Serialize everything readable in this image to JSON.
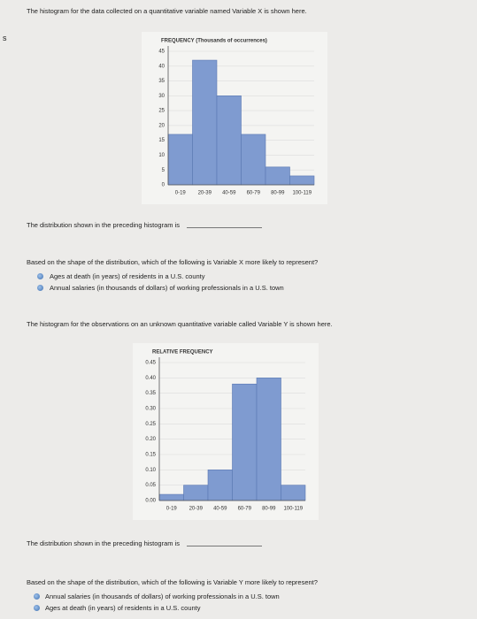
{
  "side_marker": "s",
  "sections": [
    {
      "intro": "The histogram for the data collected on a quantitative variable named Variable X is shown here.",
      "statement": "The distribution shown in the preceding histogram is",
      "question": "Based on the shape of the distribution, which of the following is Variable X more likely to represent?",
      "options": [
        "Ages at death (in years) of residents in a U.S. county",
        "Annual salaries (in thousands of dollars) of working professionals in a U.S. town"
      ]
    },
    {
      "intro": "The histogram for the observations on an unknown quantitative variable called Variable Y is shown here.",
      "statement": "The distribution shown in the preceding histogram is",
      "question": "Based on the shape of the distribution, which of the following is Variable Y more likely to represent?",
      "options": [
        "Annual salaries (in thousands of dollars) of working professionals in a U.S. town",
        "Ages at death (in years) of residents in a U.S. county"
      ]
    }
  ],
  "chart_data": [
    {
      "type": "bar",
      "ylabel": "FREQUENCY (Thousands of occurrences)",
      "categories": [
        "0-19",
        "20-39",
        "40-59",
        "60-79",
        "80-99",
        "100-119"
      ],
      "values": [
        17,
        42,
        30,
        17,
        6,
        3
      ],
      "color": "#7f9bd0",
      "ylim": [
        0,
        45
      ],
      "yticks": [
        0,
        5,
        10,
        15,
        20,
        25,
        30,
        35,
        40,
        45
      ],
      "grid": true
    },
    {
      "type": "bar",
      "ylabel": "RELATIVE FREQUENCY",
      "categories": [
        "0-19",
        "20-39",
        "40-59",
        "60-79",
        "80-99",
        "100-119"
      ],
      "values": [
        0.02,
        0.05,
        0.1,
        0.38,
        0.4,
        0.05
      ],
      "color": "#7f9bd0",
      "ylim": [
        0,
        0.45
      ],
      "yticks": [
        {
          "value": 0,
          "label": "0.00"
        },
        {
          "value": 0.05,
          "label": "0.05"
        },
        {
          "value": 0.1,
          "label": "0.10"
        },
        {
          "value": 0.15,
          "label": "0.15"
        },
        {
          "value": 0.2,
          "label": "0.20"
        },
        {
          "value": 0.25,
          "label": "0.25"
        },
        {
          "value": 0.3,
          "label": "0.30"
        },
        {
          "value": 0.35,
          "label": "0.35"
        },
        {
          "value": 0.4,
          "label": "0.40"
        },
        {
          "value": 0.45,
          "label": "0.45"
        }
      ],
      "grid": true
    }
  ]
}
